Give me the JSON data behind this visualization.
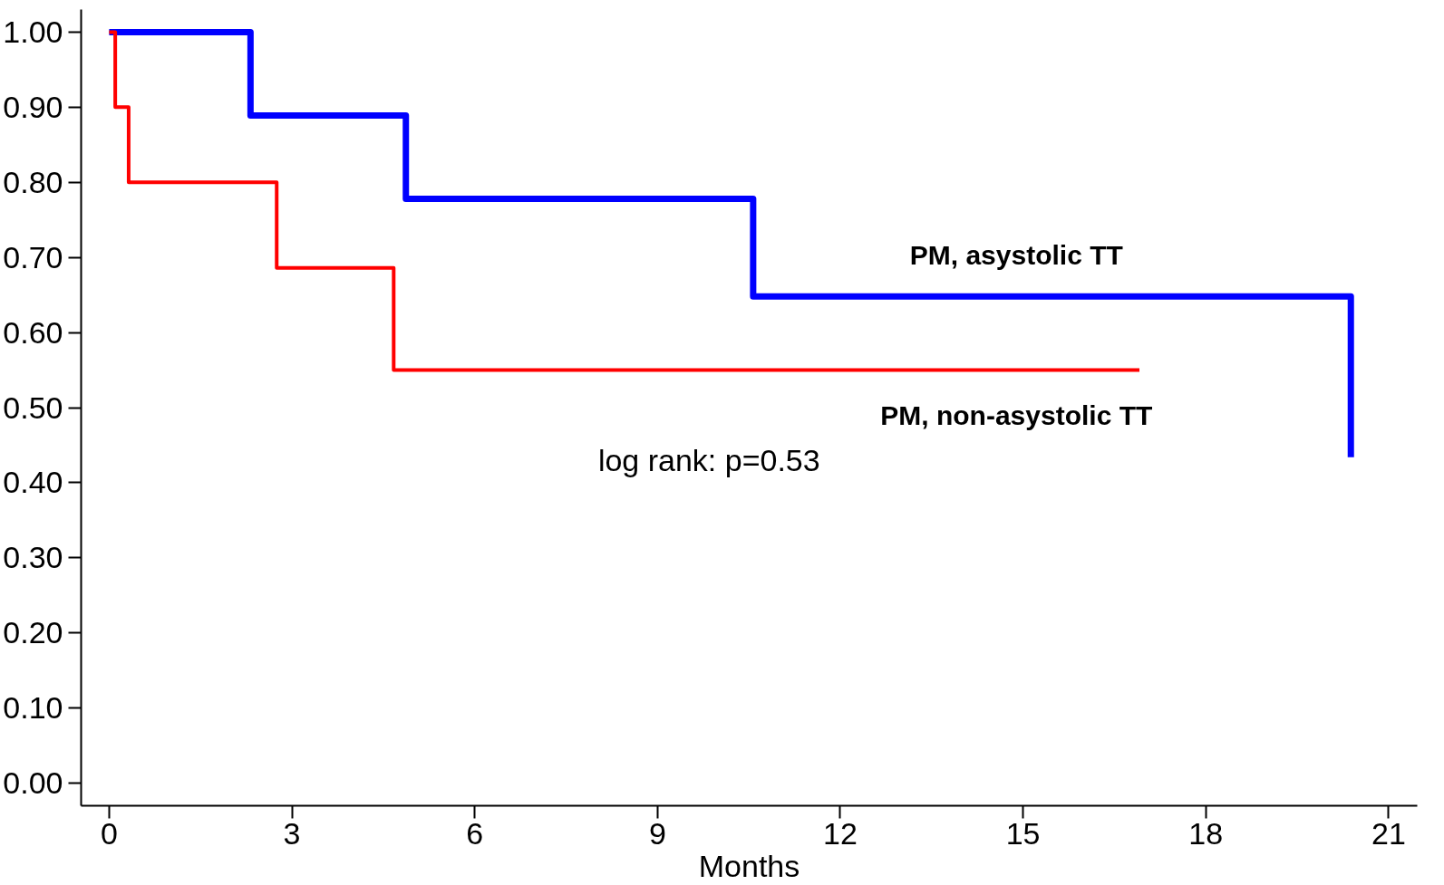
{
  "chart_data": {
    "type": "step",
    "xlabel": "Months",
    "annotations": [
      "log rank: p=0.53"
    ],
    "series": [
      {
        "name": "PM, asystolic TT",
        "color": "#0000ff",
        "x": [
          0,
          2.32,
          4.87,
          10.57,
          20.38
        ],
        "values": [
          1,
          0.889,
          0.778,
          0.648,
          0.434
        ]
      },
      {
        "name": "PM, non-asystolic TT",
        "color": "#ff0000",
        "x": [
          0,
          0.1,
          0.32,
          2.75,
          4.67,
          16.91
        ],
        "values": [
          1,
          0.9,
          0.8,
          0.686,
          0.55,
          0.55
        ]
      }
    ],
    "xlim": [
      -0.46,
      21.47
    ],
    "ylim": [
      -0.03,
      1.03
    ],
    "xticks": [
      0,
      3,
      6,
      9,
      12,
      15,
      18,
      21
    ],
    "yticks": [
      {
        "value": 0,
        "label": "0.00"
      },
      {
        "value": 0.1,
        "label": "0.10"
      },
      {
        "value": 0.2,
        "label": "0.20"
      },
      {
        "value": 0.3,
        "label": "0.30"
      },
      {
        "value": 0.4,
        "label": "0.40"
      },
      {
        "value": 0.5,
        "label": "0.50"
      },
      {
        "value": 0.6,
        "label": "0.60"
      },
      {
        "value": 0.7,
        "label": "0.70"
      },
      {
        "value": 0.8,
        "label": "0.80"
      },
      {
        "value": 0.9,
        "label": "0.90"
      },
      {
        "value": 1,
        "label": "1.00"
      }
    ],
    "grid": false
  }
}
